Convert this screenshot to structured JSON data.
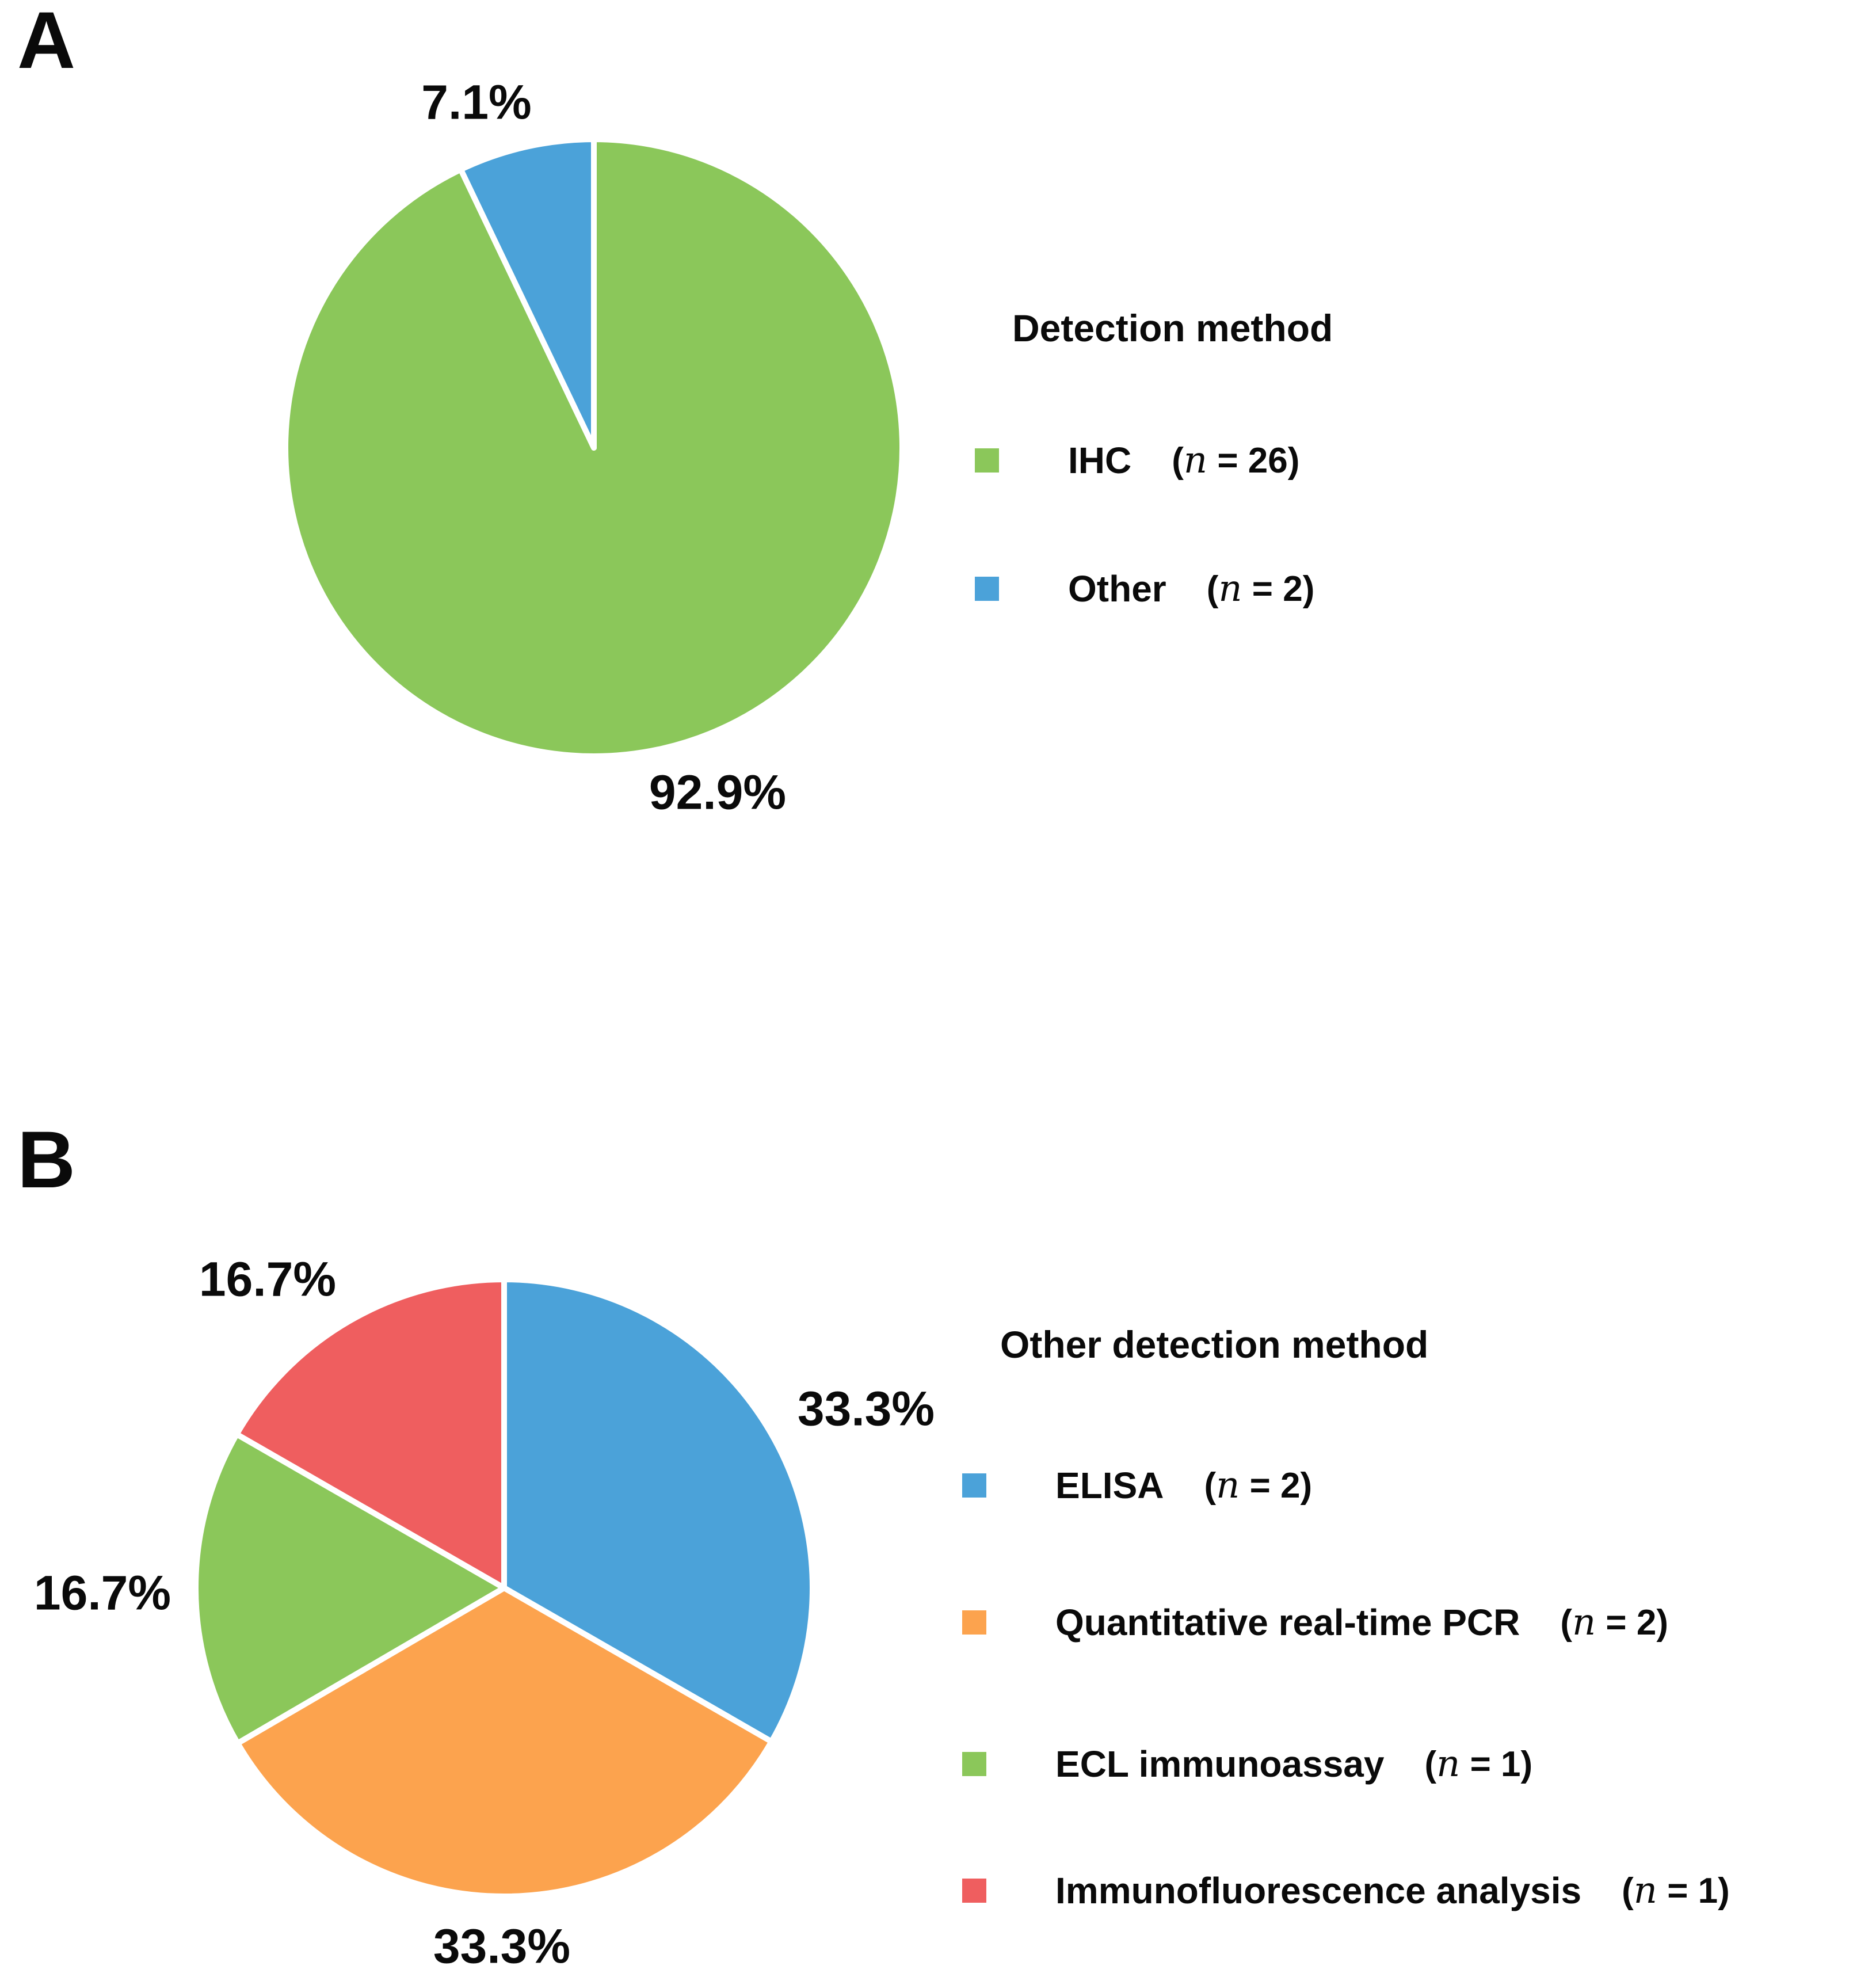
{
  "chart_data": [
    {
      "type": "pie",
      "panel": "A",
      "legend_title": "Detection method",
      "legend_position": "right",
      "start_angle_deg": 0,
      "direction": "clockwise",
      "slices": [
        {
          "label": "IHC",
          "n": 26,
          "percent": 92.9,
          "percent_label": "92.9%",
          "color": "#8bc75a",
          "count_open": "(",
          "count_n": "n",
          "count_rest": " = 26)"
        },
        {
          "label": "Other",
          "n": 2,
          "percent": 7.1,
          "percent_label": "7.1%",
          "color": "#4ba2d9",
          "count_open": "(",
          "count_n": "n",
          "count_rest": " = 2)"
        }
      ]
    },
    {
      "type": "pie",
      "panel": "B",
      "legend_title": "Other detection method",
      "legend_position": "right",
      "start_angle_deg": 0,
      "direction": "clockwise",
      "slices": [
        {
          "label": "ELISA",
          "n": 2,
          "percent": 33.3,
          "percent_label": "33.3%",
          "color": "#4ba2d9",
          "count_open": "(",
          "count_n": "n",
          "count_rest": " = 2)"
        },
        {
          "label": "Quantitative real-time PCR",
          "n": 2,
          "percent": 33.3,
          "percent_label": "33.3%",
          "color": "#fca34e",
          "count_open": "(",
          "count_n": "n",
          "count_rest": " = 2)"
        },
        {
          "label": "ECL immunoassay",
          "n": 1,
          "percent": 16.7,
          "percent_label": "16.7%",
          "color": "#8bc75a",
          "count_open": "(",
          "count_n": "n",
          "count_rest": " = 1)"
        },
        {
          "label": "Immunofluorescence analysis",
          "n": 1,
          "percent": 16.7,
          "percent_label": "16.7%",
          "color": "#ef5e5f",
          "count_open": "(",
          "count_n": "n",
          "count_rest": " = 1)"
        }
      ]
    }
  ]
}
